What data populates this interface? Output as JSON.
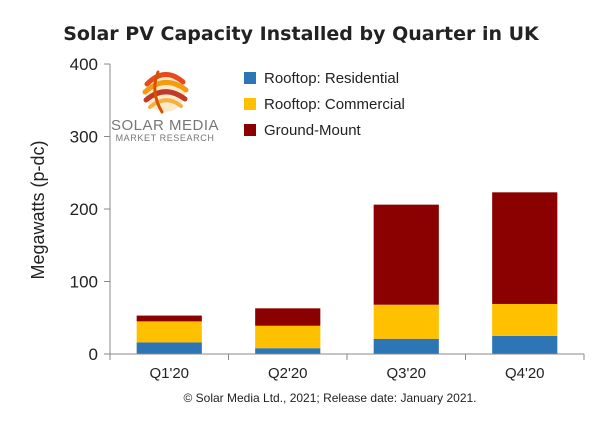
{
  "chart_data": {
    "type": "bar",
    "stacked": true,
    "title": "Solar PV Capacity Installed by Quarter in UK",
    "ylabel": "Megawatts (p-dc)",
    "xlabel": "",
    "ylim": [
      0,
      400
    ],
    "yticks": [
      "0",
      "100",
      "200",
      "300",
      "400"
    ],
    "categories": [
      "Q1'20",
      "Q2'20",
      "Q3'20",
      "Q4'20"
    ],
    "series": [
      {
        "name": "Rooftop:  Residential",
        "color": "#2E75B6",
        "values": [
          16,
          8,
          21,
          25
        ]
      },
      {
        "name": "Rooftop:  Commercial",
        "color": "#FFC000",
        "values": [
          29,
          31,
          47,
          44
        ]
      },
      {
        "name": "Ground-Mount",
        "color": "#8B0000",
        "values": [
          8,
          24,
          138,
          154
        ]
      }
    ],
    "legend_position": "top-right",
    "grid": false,
    "footnote": "© Solar Media Ltd., 2021; Release date: January 2021."
  },
  "logo": {
    "line1": "SOLAR MEDIA",
    "line2": "MARKET RESEARCH"
  }
}
